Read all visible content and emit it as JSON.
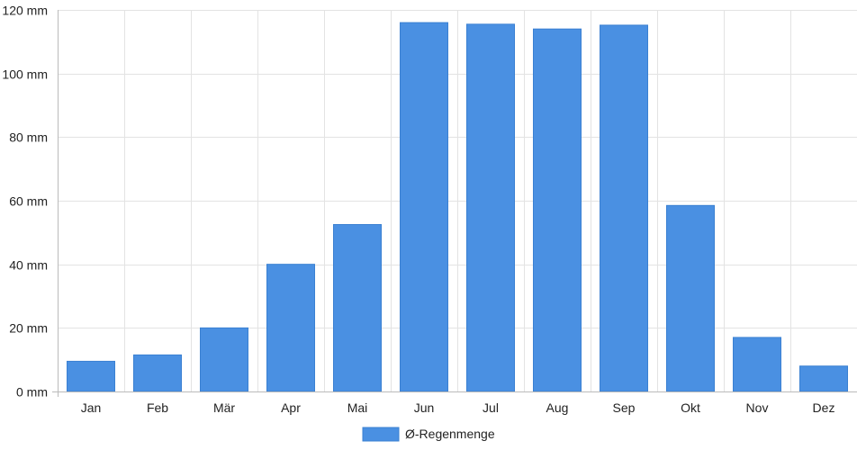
{
  "chart_data": {
    "type": "bar",
    "categories": [
      "Jan",
      "Feb",
      "Mär",
      "Apr",
      "Mai",
      "Jun",
      "Jul",
      "Aug",
      "Sep",
      "Okt",
      "Nov",
      "Dez"
    ],
    "series": [
      {
        "name": "Ø-Regenmenge",
        "values": [
          9.5,
          11.5,
          20,
          40,
          52.5,
          116,
          115.5,
          114,
          115.2,
          58.5,
          17,
          8
        ]
      }
    ],
    "y_ticks": [
      "0 mm",
      "20 mm",
      "40 mm",
      "60 mm",
      "80 mm",
      "100 mm",
      "120 mm"
    ],
    "ylim": [
      0,
      120
    ],
    "grid": true,
    "legend_position": "bottom-center",
    "colors": {
      "bar": "#4a90e2",
      "bar_border": "#3a80d2",
      "grid": "#e3e3e3",
      "axis": "#bbbbbb",
      "text": "#222222"
    }
  }
}
